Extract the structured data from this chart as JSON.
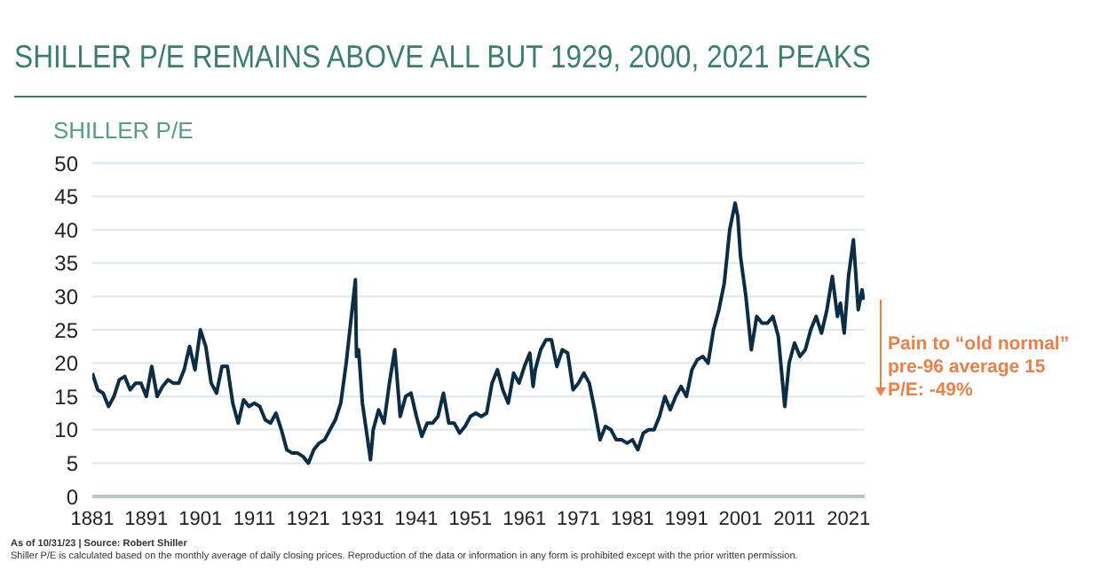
{
  "chart_data": {
    "type": "line",
    "title": "SHILLER P/E REMAINS ABOVE ALL BUT 1929, 2000, 2021 PEAKS",
    "ylabel": "SHILLER P/E",
    "annotations": [
      "Pain to “old normal” pre-96 average 15 P/E: -49%",
      "As of 10/31/23 | Source: Robert Shiller",
      "Shiller P/E is calculated based on the monthly average of daily closing prices. Reproduction of the data or information in any form is prohibited except with the prior written permission."
    ],
    "x": [
      1881,
      1882,
      1883,
      1884,
      1885,
      1886,
      1887,
      1888,
      1889,
      1890,
      1891,
      1892,
      1893,
      1894,
      1895,
      1896,
      1897,
      1898,
      1899,
      1900,
      1901,
      1902,
      1903,
      1904,
      1905,
      1906,
      1907,
      1908,
      1909,
      1910,
      1911,
      1912,
      1913,
      1914,
      1915,
      1916,
      1917,
      1918,
      1919,
      1920,
      1921,
      1922,
      1923,
      1924,
      1925,
      1926,
      1927,
      1928,
      1929.7,
      1929.9,
      1930.3,
      1931,
      1932.5,
      1933,
      1934,
      1935,
      1936,
      1937,
      1938,
      1939,
      1940,
      1941,
      1942,
      1943,
      1944,
      1945,
      1946,
      1947,
      1948,
      1949,
      1950,
      1951,
      1952,
      1953,
      1954,
      1955,
      1956,
      1957,
      1958,
      1959,
      1960,
      1961,
      1962,
      1962.6,
      1963,
      1964,
      1965,
      1966,
      1967,
      1968,
      1969,
      1970,
      1971,
      1972,
      1973,
      1974,
      1975,
      1976,
      1977,
      1978,
      1979,
      1980,
      1981,
      1982,
      1983,
      1984,
      1985,
      1986,
      1987,
      1988,
      1989,
      1990,
      1991,
      1992,
      1993,
      1994,
      1995,
      1996,
      1997,
      1998,
      1999,
      2000,
      2000.5,
      2001,
      2002,
      2003,
      2004,
      2005,
      2006,
      2007,
      2008,
      2009.2,
      2010,
      2011,
      2012,
      2013,
      2014,
      2015,
      2016,
      2017,
      2018,
      2018.95,
      2019.5,
      2020.2,
      2021,
      2021.9,
      2022.8,
      2023.5,
      2023.8
    ],
    "series": [
      {
        "color": "#0d2d45",
        "values": [
          18.5,
          16,
          15.5,
          13.5,
          15,
          17.5,
          18,
          16,
          17,
          17,
          15,
          19.5,
          15,
          16.5,
          17.5,
          17,
          17,
          19,
          22.5,
          19,
          25,
          22.5,
          17,
          15.5,
          19.5,
          19.5,
          14,
          11,
          14.5,
          13.5,
          14,
          13.5,
          11.5,
          11,
          12.5,
          10,
          7,
          6.5,
          6.5,
          6,
          5,
          7,
          8,
          8.5,
          10,
          11.5,
          14,
          20,
          32.5,
          21,
          22,
          14,
          5.5,
          10,
          13,
          11,
          17,
          22,
          12,
          15,
          15.5,
          12,
          9,
          11,
          11,
          12,
          15.5,
          11,
          11,
          9.5,
          10.5,
          12,
          12.5,
          12,
          12.5,
          17,
          19,
          16,
          14,
          18.5,
          17,
          19.5,
          21.5,
          16.5,
          19,
          22,
          23.5,
          23.5,
          19.5,
          22,
          21.5,
          16,
          17,
          18.5,
          17,
          13,
          8.5,
          10.5,
          10,
          8.5,
          8.5,
          8,
          8.5,
          7,
          9.5,
          10,
          10,
          12,
          15,
          13,
          15,
          16.5,
          15,
          19,
          20.5,
          21,
          20,
          25,
          28,
          32,
          40,
          44,
          42,
          36,
          30,
          22,
          27,
          26,
          26,
          27,
          24,
          13.5,
          20,
          23,
          21,
          22,
          25,
          27,
          24.5,
          28,
          33,
          27,
          29,
          24.5,
          33,
          38.5,
          28,
          31,
          29.5
        ]
      }
    ],
    "xlim": [
      1881,
      2024
    ],
    "xticks": [
      1881,
      1891,
      1901,
      1911,
      1921,
      1931,
      1941,
      1951,
      1961,
      1971,
      1981,
      1991,
      2001,
      2011,
      2021
    ],
    "ylim": [
      0,
      50
    ],
    "yticks": [
      0,
      5,
      10,
      15,
      20,
      25,
      30,
      35,
      40,
      45,
      50
    ],
    "grid": "y"
  }
}
